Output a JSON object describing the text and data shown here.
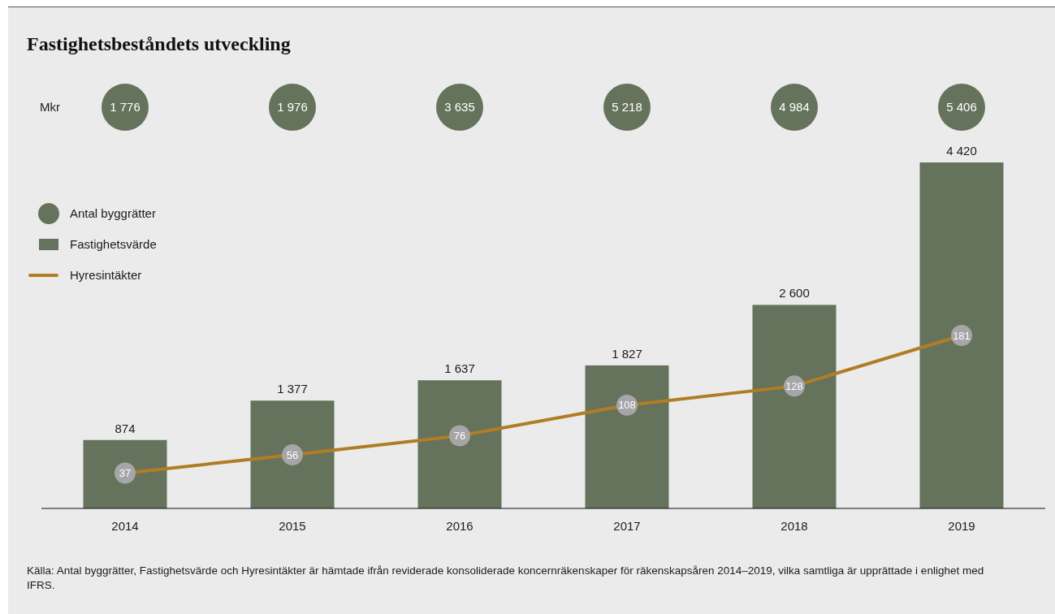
{
  "chart_data": [
    {
      "type": "other",
      "title": "Fastighetsbeståndets utveckling",
      "legend": "left",
      "series": [
        {
          "name": "Antal byggrätter",
          "color": "#65725c",
          "values": [
            1776,
            1976,
            3635,
            5218,
            4984,
            5406
          ],
          "value_labels": [
            "1 776",
            "1 976",
            "3 635",
            "5 218",
            "4 984",
            "5 406"
          ]
        }
      ]
    },
    {
      "type": "bar",
      "ylabel": "Mkr",
      "categories": [
        "2014",
        "2015",
        "2016",
        "2017",
        "2018",
        "2019"
      ],
      "tick_labels": "x",
      "legend": "left",
      "marker": "circle",
      "line_style": "solid",
      "series": [
        {
          "name": "Fastighetsvärde",
          "color": "#65725c",
          "values": [
            874,
            1377,
            1637,
            1827,
            2600,
            4420
          ],
          "value_labels": [
            "874",
            "1 377",
            "1 637",
            "1 827",
            "2 600",
            "4 420"
          ]
        },
        {
          "name": "Hyresintäkter",
          "type": "line",
          "axis": "y2",
          "color": "#b07d25",
          "colors": [
            "#a6a6a9",
            "#a6a6a9",
            "#a6a6a9",
            "#a6a6a9",
            "#a6a6a9",
            "#a6a6a9"
          ],
          "values": [
            37,
            56,
            76,
            108,
            128,
            181
          ],
          "value_labels": [
            "37",
            "56",
            "76",
            "108",
            "128",
            "181"
          ]
        }
      ],
      "annotations": [
        "Källa: Antal byggrätter, Fastighetsvärde och Hyresintäkter är hämtade ifrån reviderade konsoliderade koncernräkenskaper för räkenskapsåren 2014–2019, vilka samtliga är upprättade i enlighet med IFRS."
      ]
    }
  ]
}
